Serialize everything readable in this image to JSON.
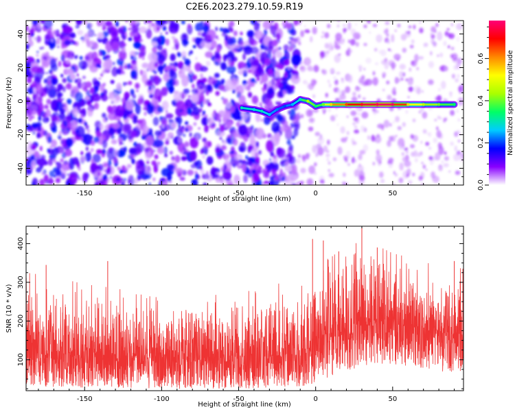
{
  "title": "C2E6.2023.279.10.59.R19",
  "chart_data": [
    {
      "type": "heatmap",
      "xlabel": "Height of straight line (km)",
      "ylabel": "Frequency (Hz)",
      "xlim": [
        -188,
        96
      ],
      "ylim": [
        -50,
        48
      ],
      "x_ticks": [
        -150,
        -100,
        -50,
        0,
        50
      ],
      "y_ticks": [
        -40,
        -20,
        0,
        20,
        40
      ],
      "grid": false,
      "colorbar": {
        "label": "Normalized spectral amplitude",
        "range": [
          0.0,
          0.78
        ],
        "ticks": [
          0.0,
          0.2,
          0.4,
          0.6
        ],
        "colormap": [
          "#ffffff",
          "#8800ff",
          "#0000ff",
          "#00ccff",
          "#00ff66",
          "#aaff00",
          "#ffff00",
          "#ff8800",
          "#ff0000",
          "#ff0077"
        ]
      },
      "signal_trace": [
        {
          "x": -48,
          "y": -4,
          "amp": 0.3
        },
        {
          "x": -40,
          "y": -5,
          "amp": 0.28
        },
        {
          "x": -35,
          "y": -6,
          "amp": 0.3
        },
        {
          "x": -30,
          "y": -8,
          "amp": 0.25
        },
        {
          "x": -25,
          "y": -5,
          "amp": 0.22
        },
        {
          "x": -20,
          "y": -3,
          "amp": 0.2
        },
        {
          "x": -15,
          "y": -2,
          "amp": 0.25
        },
        {
          "x": -10,
          "y": 1,
          "amp": 0.3
        },
        {
          "x": -5,
          "y": 0,
          "amp": 0.45
        },
        {
          "x": 0,
          "y": -3,
          "amp": 0.35
        },
        {
          "x": 5,
          "y": -2,
          "amp": 0.4
        },
        {
          "x": 10,
          "y": -2,
          "amp": 0.55
        },
        {
          "x": 20,
          "y": -2,
          "amp": 0.65
        },
        {
          "x": 30,
          "y": -2,
          "amp": 0.72
        },
        {
          "x": 40,
          "y": -2,
          "amp": 0.75
        },
        {
          "x": 50,
          "y": -2,
          "amp": 0.76
        },
        {
          "x": 60,
          "y": -2,
          "amp": 0.55
        },
        {
          "x": 70,
          "y": -2,
          "amp": 0.45
        },
        {
          "x": 80,
          "y": -2,
          "amp": 0.4
        },
        {
          "x": 90,
          "y": -2,
          "amp": 0.35
        }
      ]
    },
    {
      "type": "line",
      "xlabel": "Height of straight line (km)",
      "ylabel": "SNR (10 * v/v)",
      "xlim": [
        -188,
        96
      ],
      "ylim": [
        20,
        445
      ],
      "x_ticks": [
        -150,
        -100,
        -50,
        0,
        50
      ],
      "y_ticks": [
        100,
        200,
        300,
        400
      ],
      "grid": false,
      "series_color": "#ee3333",
      "envelope": {
        "x": [
          -188,
          -170,
          -150,
          -130,
          -110,
          -90,
          -70,
          -50,
          -30,
          -10,
          0,
          10,
          20,
          30,
          40,
          50,
          60,
          70,
          80,
          96
        ],
        "median": [
          110,
          108,
          105,
          103,
          100,
          100,
          100,
          102,
          105,
          110,
          125,
          150,
          170,
          185,
          190,
          190,
          185,
          180,
          170,
          160
        ],
        "upper": [
          310,
          300,
          280,
          270,
          250,
          240,
          250,
          260,
          280,
          300,
          330,
          350,
          380,
          390,
          380,
          360,
          350,
          340,
          330,
          320
        ],
        "lower": [
          30,
          30,
          28,
          28,
          25,
          25,
          25,
          25,
          28,
          30,
          40,
          55,
          70,
          80,
          90,
          85,
          80,
          75,
          70,
          65
        ]
      },
      "peaks": [
        {
          "x": 30,
          "y": 442
        },
        {
          "x": -2,
          "y": 412
        },
        {
          "x": 5,
          "y": 408
        },
        {
          "x": -135,
          "y": 355
        },
        {
          "x": -175,
          "y": 345
        },
        {
          "x": 15,
          "y": 380
        },
        {
          "x": 40,
          "y": 390
        },
        {
          "x": 90,
          "y": 355
        }
      ]
    }
  ]
}
